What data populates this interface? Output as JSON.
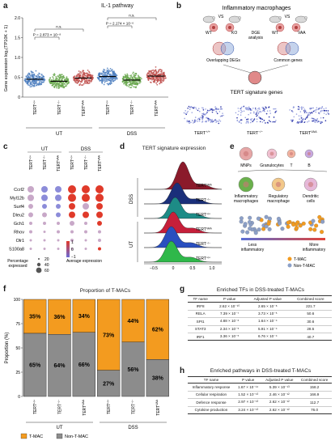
{
  "panels": {
    "a": {
      "label": "a",
      "title": "IL-1 pathway",
      "ylabel": "Gene expression log₂(TP10K + 1)",
      "yticks": [
        "0",
        "0.5",
        "1.0",
        "1.5",
        "2.0"
      ],
      "groups": [
        "UT",
        "DSS"
      ],
      "categories": [
        "TERT+/+",
        "TERT−/−",
        "TERTVAA",
        "TERT+/+",
        "TERT−/−",
        "TERTVAA"
      ],
      "colors": [
        "#4d7fbf",
        "#6aa84f",
        "#c0504d",
        "#4d7fbf",
        "#6aa84f",
        "#c0504d"
      ],
      "annotations": [
        "P = 2.873 × 10⁻⁸",
        "n.s.",
        "P = 2.174 × 10⁻⁶",
        "n.s."
      ]
    },
    "b": {
      "label": "b",
      "title": "Inflammatory macrophages",
      "vs1_left": "WT",
      "vs1_mid": "VS",
      "vs1_right": "KO",
      "vs2_left": "WT",
      "vs2_mid": "VS",
      "vs2_right": "VAA",
      "dge": "DGE analysis",
      "overlap": "Overlapping DEGs",
      "common": "Common genes",
      "sig_title": "TERT signature genes",
      "umaps": [
        "TERT+/+",
        "TERT−/−",
        "TERTVAA"
      ]
    },
    "c": {
      "label": "c",
      "groups": [
        "UT",
        "DSS"
      ],
      "columns": [
        "TERT+/+",
        "TERT−/−",
        "TERTVAA",
        "TERT+/+",
        "TERT−/−",
        "TERTVAA"
      ],
      "genes": [
        "Ccrl2",
        "Myl12b",
        "Surf4",
        "Dleu2",
        "Gch1",
        "Rhov",
        "Olr1",
        "S100a8"
      ],
      "size_legend_title": "Percentage expressed",
      "size_legend": [
        "20",
        "40",
        "60"
      ],
      "color_legend_title": "Average expression",
      "color_legend": [
        "1",
        "0",
        "−1"
      ]
    },
    "d": {
      "label": "d",
      "title": "TERT signature expression",
      "tracks": [
        "TERTVAA",
        "TERT−/−",
        "TERT+/+",
        "TERTVAA",
        "TERT−/−",
        "TERT+/+"
      ],
      "groups": [
        "DSS",
        "UT"
      ],
      "xticks": [
        "−0.5",
        "0",
        "0.5",
        "1.0"
      ]
    },
    "e": {
      "label": "e",
      "cells": [
        "MNPs",
        "Granulocytes",
        "T",
        "B",
        "Inflammatory macrophages",
        "Regulatory macrophage",
        "Dendritic cells"
      ],
      "less": "Less inflammatory",
      "more": "More inflammatory",
      "legend": [
        "T-MAC",
        "Non-T-MAC"
      ]
    },
    "f": {
      "label": "f",
      "title": "Proportion of T-MACs",
      "ylabel": "Proportion (%)",
      "yticks": [
        "0",
        "25",
        "50",
        "75",
        "100"
      ],
      "groups": [
        "UT",
        "DSS"
      ],
      "legend": [
        "T-MAC",
        "Non-T-MAC"
      ]
    },
    "g": {
      "label": "g",
      "title": "Enriched TFs in DSS-treated T-MACs",
      "headers": [
        "TF name",
        "P value",
        "Adjusted P value",
        "Combined score"
      ],
      "rows": [
        [
          "IRF8",
          "2.62 × 10⁻¹⁰",
          "2.65 × 10⁻⁸",
          "221.7"
        ],
        [
          "RELA",
          "7.39 × 10⁻⁷",
          "3.73 × 10⁻⁵",
          "50.6"
        ],
        [
          "SPI1",
          "4.88 × 10⁻⁶",
          "1.64 × 10⁻⁴",
          "30.6"
        ],
        [
          "STAT3",
          "2.34 × 10⁻⁵",
          "5.91 × 10⁻⁴",
          "28.5"
        ],
        [
          "IRF1",
          "3.36 × 10⁻⁵",
          "6.76 × 10⁻⁴",
          "40.7"
        ]
      ]
    },
    "h": {
      "label": "h",
      "title": "Enriched pathways in DSS-treated T-MACs",
      "headers": [
        "TF name",
        "P value",
        "Adjusted P value",
        "Combined score"
      ],
      "rows": [
        [
          "Inflammatory response",
          "1.67 × 10⁻¹⁴",
          "5.39 × 10⁻¹³",
          "158.2"
        ],
        [
          "Cellular respiration",
          "1.52 × 10⁻¹³",
          "2.46 × 10⁻¹²",
          "166.9"
        ],
        [
          "Defence response",
          "2.97 × 10⁻¹³",
          "2.62 × 10⁻¹²",
          "112.7"
        ],
        [
          "Cytokine production",
          "3.24 × 10⁻¹³",
          "2.62 × 10⁻¹²",
          "76.0"
        ]
      ]
    }
  },
  "chart_data": [
    {
      "type": "scatter",
      "title": "IL-1 pathway",
      "categories": [
        "TERT+/+ UT",
        "TERT−/− UT",
        "TERTVAA UT",
        "TERT+/+ DSS",
        "TERT−/− DSS",
        "TERTVAA DSS"
      ],
      "medians": [
        0.45,
        0.4,
        0.48,
        0.52,
        0.43,
        0.53
      ],
      "ylim": [
        0,
        2.0
      ]
    },
    {
      "type": "bar",
      "title": "Proportion of T-MACs",
      "categories": [
        "TERT+/+ UT",
        "TERT−/− UT",
        "TERTVAA UT",
        "TERT+/+ DSS",
        "TERT−/− DSS",
        "TERTVAA DSS"
      ],
      "series": [
        {
          "name": "T-MAC",
          "values": [
            35,
            36,
            34,
            73,
            44,
            62
          ]
        },
        {
          "name": "Non-T-MAC",
          "values": [
            65,
            64,
            66,
            27,
            56,
            38
          ]
        }
      ],
      "ylim": [
        0,
        100
      ]
    }
  ],
  "colors": {
    "tmac": "#f39b1f",
    "nontmac": "#8c8c8c",
    "blue": "#4d7fbf",
    "green": "#6aa84f",
    "red": "#c0504d"
  }
}
